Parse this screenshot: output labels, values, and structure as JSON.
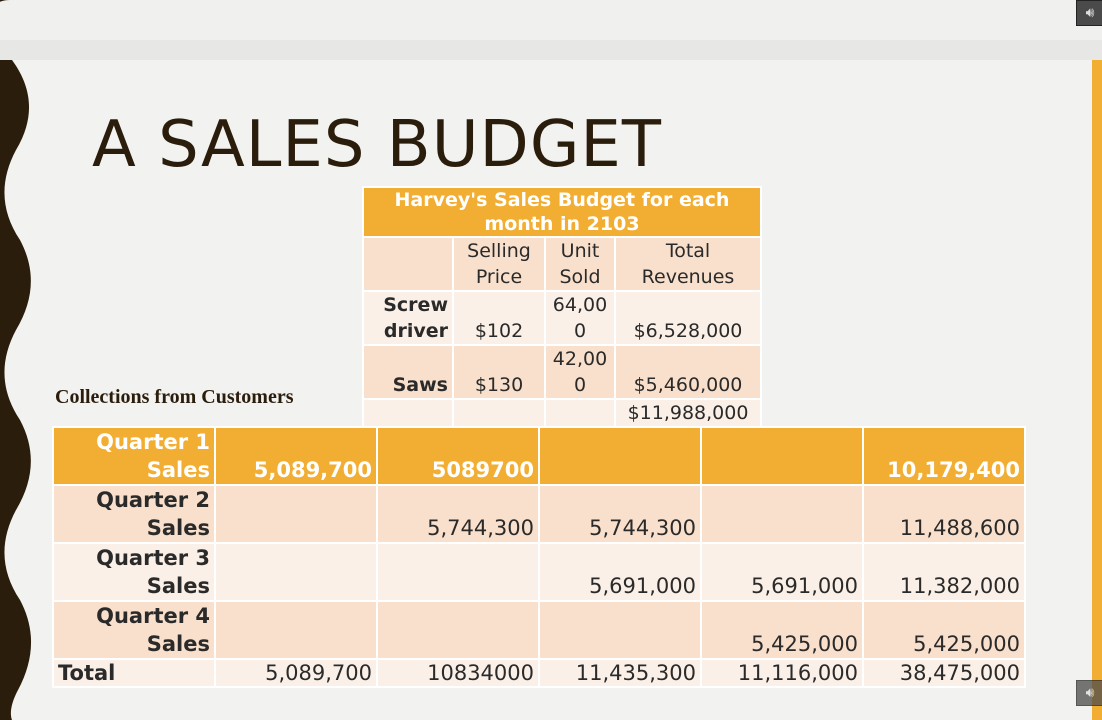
{
  "slide": {
    "title": "A SALES BUDGET",
    "collections_label": "Collections from Customers"
  },
  "icons": {
    "audio": "speaker-icon"
  },
  "budget_table": {
    "caption_line1": "Harvey's Sales Budget for each",
    "caption_line2": "month in 2103",
    "headers": [
      {
        "l1": "",
        "l2": ""
      },
      {
        "l1": "Selling",
        "l2": "Price"
      },
      {
        "l1": "Unit",
        "l2": "Sold"
      },
      {
        "l1": "Total",
        "l2": "Revenues"
      }
    ],
    "rows": [
      {
        "label1": "Screw",
        "label2": "driver",
        "price": "$102",
        "units1": "64,00",
        "units2": "0",
        "revenue": "$6,528,000"
      },
      {
        "label1": "",
        "label2": "Saws",
        "price": "$130",
        "units1": "42,00",
        "units2": "0",
        "revenue": "$5,460,000"
      }
    ],
    "total_revenue": "$11,988,000"
  },
  "collections_table": {
    "rows": [
      {
        "label1": "Quarter 1",
        "label2": "Sales",
        "cells": [
          "5,089,700",
          "5089700",
          "",
          "",
          "10,179,400"
        ]
      },
      {
        "label1": "Quarter 2",
        "label2": "Sales",
        "cells": [
          "",
          "5,744,300",
          "5,744,300",
          "",
          "11,488,600"
        ]
      },
      {
        "label1": "Quarter 3",
        "label2": "Sales",
        "cells": [
          "",
          "",
          "5,691,000",
          "5,691,000",
          "11,382,000"
        ]
      },
      {
        "label1": "Quarter 4",
        "label2": "Sales",
        "cells": [
          "",
          "",
          "",
          "5,425,000",
          "5,425,000"
        ]
      }
    ],
    "total_label": "Total",
    "totals": [
      "5,089,700",
      "10834000",
      "11,435,300",
      "11,116,000",
      "38,475,000"
    ]
  },
  "colors": {
    "accent_orange": "#f2ae32",
    "row_dark": "#f9e0cc",
    "row_light": "#fbf0e7",
    "title_text": "#2a1d0c"
  }
}
